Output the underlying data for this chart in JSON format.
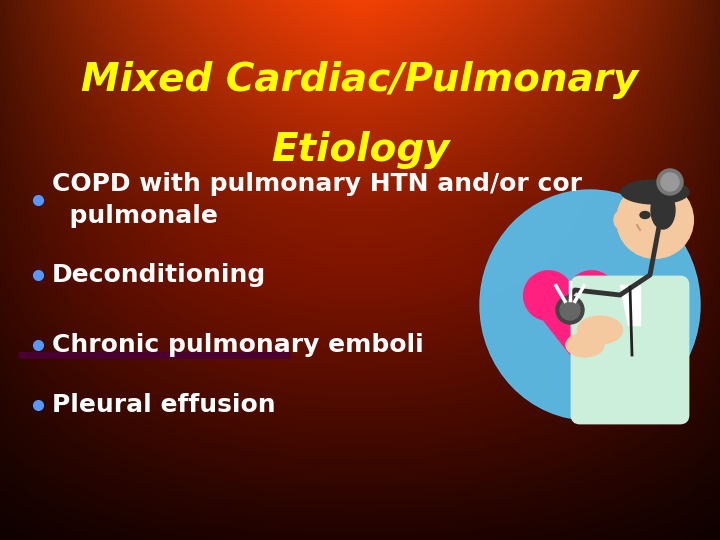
{
  "title_line1": "Mixed Cardiac/Pulmonary",
  "title_line2": "Etiology",
  "title_color": "#FFFF00",
  "title_fontsize": 28,
  "title_fontstyle": "italic",
  "title_fontweight": "bold",
  "bullet_items": [
    "COPD with pulmonary HTN and/or cor\n  pulmonale",
    "Deconditioning",
    "Chronic pulmonary emboli",
    "Pleural effusion"
  ],
  "bullet_color": "#FFFFFF",
  "bullet_fontsize": 18,
  "bullet_dot_color": "#5599FF",
  "divider_color": "#4A0030",
  "fig_width": 7.2,
  "fig_height": 5.4,
  "dpi": 100
}
